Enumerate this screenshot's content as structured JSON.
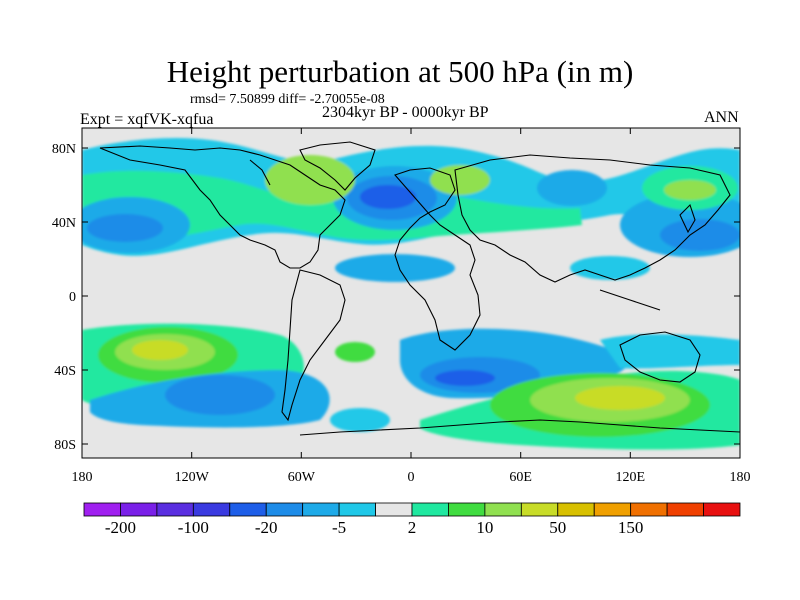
{
  "title": "Height perturbation at 500 hPa (in m)",
  "stats_line": "rmsd= 7.50899 diff= -2.70055e-08",
  "subtitle_left": "Expt = xqfVK-xqfua",
  "subtitle_center": "2304kyr BP - 0000kyr BP",
  "subtitle_right": "ANN",
  "lat_ticks": [
    "80N",
    "40N",
    "0",
    "40S",
    "80S"
  ],
  "lon_ticks": [
    "180",
    "120W",
    "60W",
    "0",
    "60E",
    "120E",
    "180"
  ],
  "colorbar": {
    "colors": [
      "#a020f0",
      "#7a20e8",
      "#5a2ee0",
      "#3a3ae0",
      "#1e5ee8",
      "#1e8ce8",
      "#1eaae8",
      "#20c8e8",
      "#e6e6e6",
      "#20e8a0",
      "#40dc40",
      "#90e050",
      "#c8dc28",
      "#d8c000",
      "#f0a000",
      "#f07000",
      "#f04000",
      "#e81010"
    ],
    "labels": [
      "-200",
      "-100",
      "-20",
      "-5",
      "2",
      "10",
      "50",
      "150"
    ]
  },
  "palette": {
    "neutral": "#e6e6e6",
    "coast": "#000000"
  }
}
